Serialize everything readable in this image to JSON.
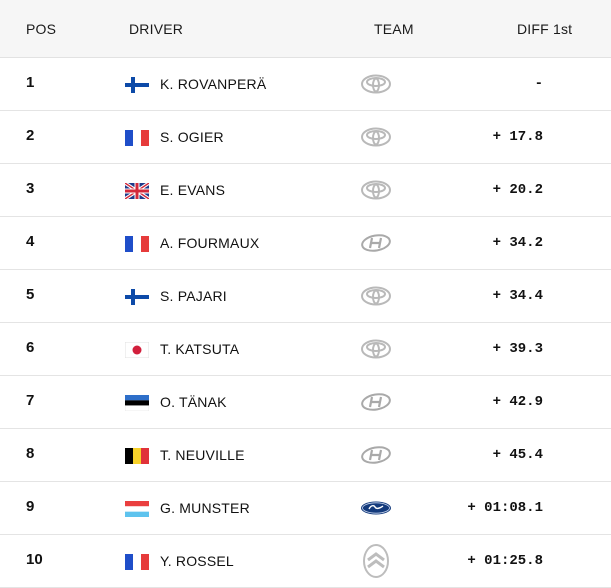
{
  "header": {
    "pos": "POS",
    "driver": "DRIVER",
    "team": "TEAM",
    "diff": "DIFF 1st"
  },
  "rows": [
    {
      "pos": "1",
      "flag": "finland-flag",
      "name": "K. ROVANPERÄ",
      "team": "toyota-logo",
      "diff": "-"
    },
    {
      "pos": "2",
      "flag": "france-flag",
      "name": "S. OGIER",
      "team": "toyota-logo",
      "diff": "+ 17.8"
    },
    {
      "pos": "3",
      "flag": "uk-flag",
      "name": "E. EVANS",
      "team": "toyota-logo",
      "diff": "+ 20.2"
    },
    {
      "pos": "4",
      "flag": "france-flag",
      "name": "A. FOURMAUX",
      "team": "hyundai-logo",
      "diff": "+ 34.2"
    },
    {
      "pos": "5",
      "flag": "finland-flag",
      "name": "S. PAJARI",
      "team": "toyota-logo",
      "diff": "+ 34.4"
    },
    {
      "pos": "6",
      "flag": "japan-flag",
      "name": "T. KATSUTA",
      "team": "toyota-logo",
      "diff": "+ 39.3"
    },
    {
      "pos": "7",
      "flag": "estonia-flag",
      "name": "O. TÄNAK",
      "team": "hyundai-logo",
      "diff": "+ 42.9"
    },
    {
      "pos": "8",
      "flag": "belgium-flag",
      "name": "T. NEUVILLE",
      "team": "hyundai-logo",
      "diff": "+ 45.4"
    },
    {
      "pos": "9",
      "flag": "luxembourg-flag",
      "name": "G. MUNSTER",
      "team": "ford-logo",
      "diff": "+ 01:08.1"
    },
    {
      "pos": "10",
      "flag": "france-flag",
      "name": "Y. ROSSEL",
      "team": "citroen-logo",
      "diff": "+ 01:25.8"
    }
  ],
  "colors": {
    "header_bg": "#f6f6f6",
    "divider": "#e4e4e4",
    "text": "#111111",
    "toyota_logo": "#b9b9b9",
    "hyundai_logo": "#a9a9a9",
    "ford_blue": "#133a7c",
    "citroen_logo": "#bdbdbd"
  }
}
